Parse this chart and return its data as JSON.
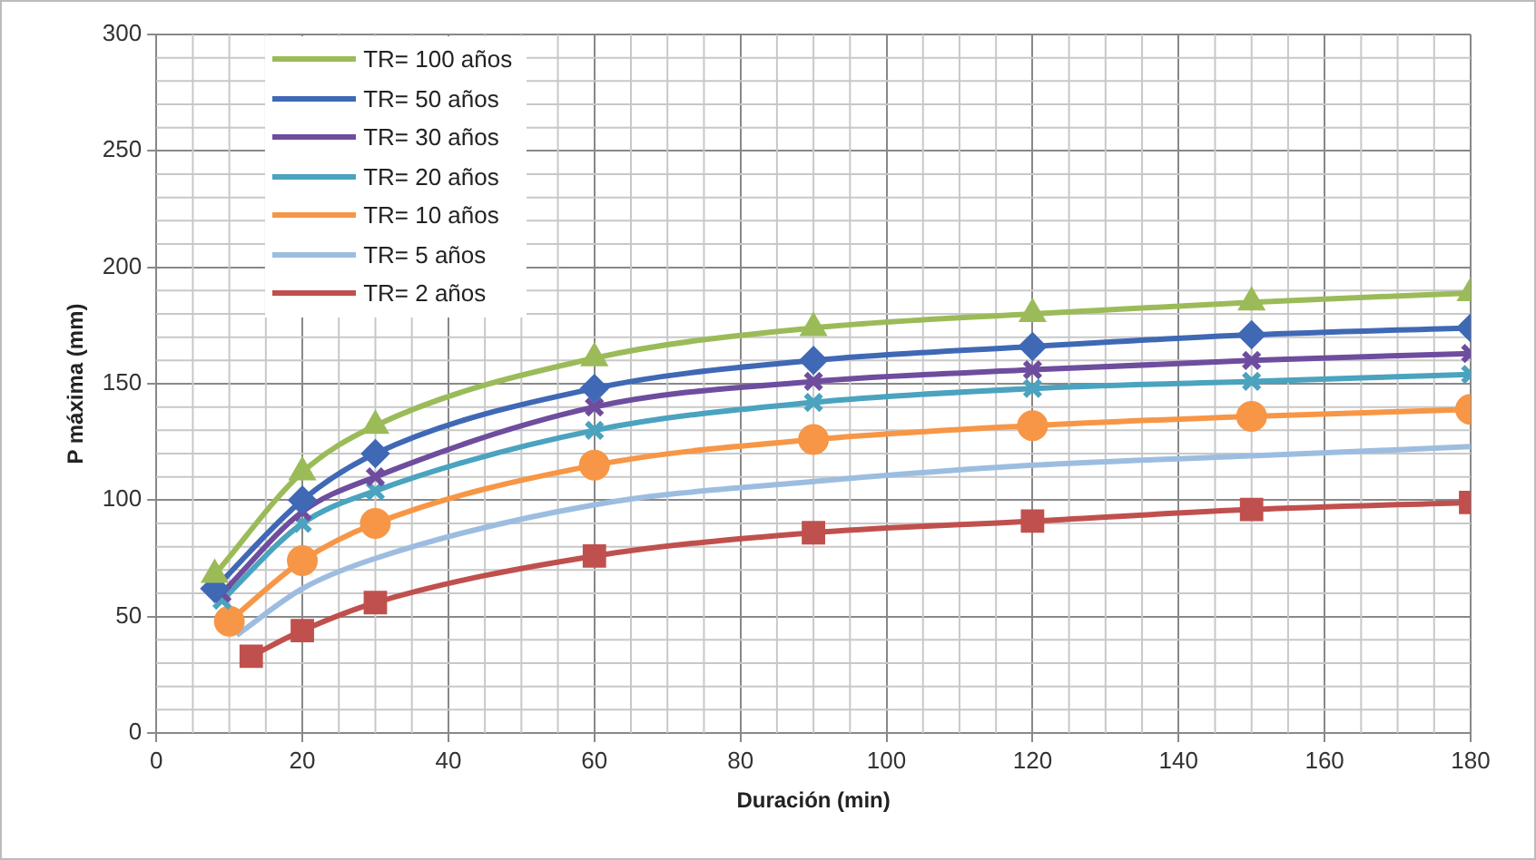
{
  "chart_data": {
    "type": "line",
    "xlabel": "Duración (min)",
    "ylabel": "P máxima (mm)",
    "xlim": [
      0,
      180
    ],
    "xticks": [
      0,
      20,
      40,
      60,
      80,
      100,
      120,
      140,
      160,
      180
    ],
    "ylim": [
      0,
      300
    ],
    "yticks": [
      0,
      50,
      100,
      150,
      200,
      250,
      300
    ],
    "grid": true,
    "legend": "top left",
    "series": [
      {
        "name": "TR= 100 años",
        "color": "#9bbb59",
        "marker": "triangle",
        "x": [
          8,
          20,
          30,
          60,
          90,
          120,
          150,
          180
        ],
        "values": [
          68,
          112,
          132,
          161,
          174,
          180,
          185,
          189
        ]
      },
      {
        "name": "TR= 50 años",
        "color": "#3f68b5",
        "marker": "diamond",
        "x": [
          8,
          20,
          30,
          60,
          90,
          120,
          150,
          180
        ],
        "values": [
          62,
          100,
          120,
          148,
          160,
          166,
          171,
          174
        ]
      },
      {
        "name": "TR= 30 años",
        "color": "#6e4d9e",
        "marker": "cross",
        "x": [
          9,
          20,
          30,
          60,
          90,
          120,
          150,
          180
        ],
        "values": [
          60,
          95,
          110,
          140,
          151,
          156,
          160,
          163
        ]
      },
      {
        "name": "TR= 20 años",
        "color": "#4aa3bf",
        "marker": "cross",
        "x": [
          9,
          20,
          30,
          60,
          90,
          120,
          150,
          180
        ],
        "values": [
          57,
          90,
          104,
          130,
          142,
          148,
          151,
          154
        ]
      },
      {
        "name": "TR= 10 años",
        "color": "#f79646",
        "marker": "circle",
        "x": [
          10,
          20,
          30,
          60,
          90,
          120,
          150,
          180
        ],
        "values": [
          48,
          74,
          90,
          115,
          126,
          132,
          136,
          139
        ]
      },
      {
        "name": "TR= 5 años",
        "color": "#9dbde0",
        "marker": "none",
        "x": [
          11,
          20,
          30,
          60,
          90,
          120,
          150,
          180
        ],
        "values": [
          42,
          62,
          75,
          98,
          108,
          115,
          119,
          123
        ]
      },
      {
        "name": "TR= 2 años",
        "color": "#c0504d",
        "marker": "square",
        "x": [
          13,
          20,
          30,
          60,
          90,
          120,
          150,
          180
        ],
        "values": [
          33,
          44,
          56,
          76,
          86,
          91,
          96,
          99
        ]
      }
    ]
  }
}
